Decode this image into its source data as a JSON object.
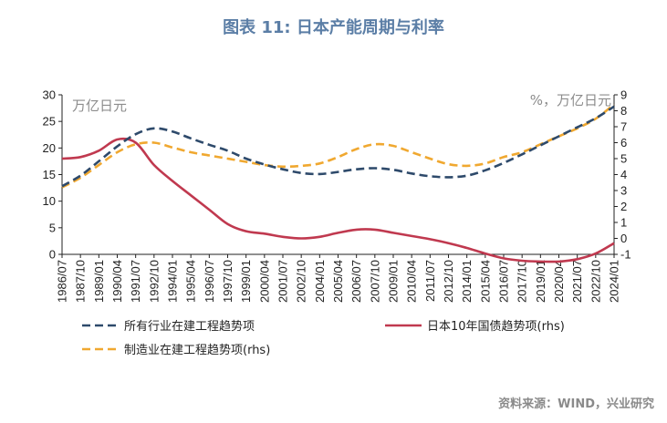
{
  "title": "图表 11: 日本产能周期与利率",
  "source": "资料来源：WIND，兴业研究",
  "chart_data": {
    "type": "line",
    "left_unit": "万亿日元",
    "right_unit": "%，万亿日元",
    "ylim_left": [
      0,
      30
    ],
    "yticks_left": [
      0,
      5,
      10,
      15,
      20,
      25,
      30
    ],
    "ylim_right": [
      -1,
      9
    ],
    "yticks_right": [
      -1,
      0,
      1,
      2,
      3,
      4,
      5,
      6,
      7,
      8,
      9
    ],
    "grid": false,
    "legend_position": "bottom",
    "x_range": [
      "1986/07",
      "2024/01"
    ],
    "x_tick_labels": [
      "1986/07",
      "1987/10",
      "1989/01",
      "1990/04",
      "1991/07",
      "1992/10",
      "1994/01",
      "1995/04",
      "1996/07",
      "1997/10",
      "1999/01",
      "2000/04",
      "2001/07",
      "2002/10",
      "2004/01",
      "2005/04",
      "2006/07",
      "2007/10",
      "2009/01",
      "2010/04",
      "2011/07",
      "2012/10",
      "2014/01",
      "2015/04",
      "2016/07",
      "2017/10",
      "2019/01",
      "2020/04",
      "2021/07",
      "2022/10",
      "2024/01"
    ],
    "series": [
      {
        "name": "所有行业在建工程趋势项",
        "axis": "left",
        "color": "#2e4a6b",
        "dash": "dash",
        "x": [
          "1986/07",
          "1987/10",
          "1989/01",
          "1990/04",
          "1991/07",
          "1992/10",
          "1994/01",
          "1995/04",
          "1996/07",
          "1997/10",
          "1999/01",
          "2000/04",
          "2001/07",
          "2002/10",
          "2004/01",
          "2005/04",
          "2006/07",
          "2007/10",
          "2009/01",
          "2010/04",
          "2011/07",
          "2012/10",
          "2014/01",
          "2015/04",
          "2016/07",
          "2017/10",
          "2019/01",
          "2020/04",
          "2021/07",
          "2022/10",
          "2024/01"
        ],
        "values": [
          12.8,
          14.8,
          17.5,
          20.3,
          22.6,
          23.7,
          23.1,
          21.8,
          20.6,
          19.5,
          18.0,
          16.9,
          16.0,
          15.3,
          15.1,
          15.5,
          16.0,
          16.2,
          15.9,
          15.2,
          14.7,
          14.5,
          14.8,
          15.8,
          17.2,
          18.8,
          20.5,
          22.2,
          23.9,
          25.6,
          27.8
        ]
      },
      {
        "name": "日本10年国债趋势项(rhs)",
        "axis": "right",
        "color": "#c0394f",
        "dash": "solid",
        "x": [
          "1986/07",
          "1987/10",
          "1989/01",
          "1990/04",
          "1991/07",
          "1992/10",
          "1994/01",
          "1995/04",
          "1996/07",
          "1997/10",
          "1999/01",
          "2000/04",
          "2001/07",
          "2002/10",
          "2004/01",
          "2005/04",
          "2006/07",
          "2007/10",
          "2009/01",
          "2010/04",
          "2011/07",
          "2012/10",
          "2014/01",
          "2015/04",
          "2016/07",
          "2017/10",
          "2019/01",
          "2020/04",
          "2021/07",
          "2022/10",
          "2024/01"
        ],
        "values": [
          5.0,
          5.1,
          5.5,
          6.2,
          6.0,
          4.6,
          3.6,
          2.7,
          1.8,
          0.9,
          0.45,
          0.3,
          0.1,
          0.0,
          0.1,
          0.35,
          0.55,
          0.55,
          0.35,
          0.15,
          -0.05,
          -0.3,
          -0.6,
          -0.95,
          -1.25,
          -1.4,
          -1.45,
          -1.45,
          -1.3,
          -0.95,
          -0.3
        ]
      },
      {
        "name": "制造业在建工程趋势项(rhs)",
        "axis": "right",
        "color": "#f0a830",
        "dash": "dash",
        "x": [
          "1986/07",
          "1987/10",
          "1989/01",
          "1990/04",
          "1991/07",
          "1992/10",
          "1994/01",
          "1995/04",
          "1996/07",
          "1997/10",
          "1999/01",
          "2000/04",
          "2001/07",
          "2002/10",
          "2004/01",
          "2005/04",
          "2006/07",
          "2007/10",
          "2009/01",
          "2010/04",
          "2011/07",
          "2012/10",
          "2014/01",
          "2015/04",
          "2016/07",
          "2017/10",
          "2019/01",
          "2020/04",
          "2021/07",
          "2022/10",
          "2024/01"
        ],
        "values": [
          3.2,
          3.8,
          4.6,
          5.4,
          5.9,
          6.0,
          5.7,
          5.4,
          5.2,
          5.0,
          4.8,
          4.6,
          4.5,
          4.55,
          4.7,
          5.1,
          5.6,
          5.9,
          5.8,
          5.4,
          5.0,
          4.65,
          4.55,
          4.7,
          5.1,
          5.4,
          5.9,
          6.4,
          6.9,
          7.5,
          8.4
        ]
      }
    ],
    "legend": [
      {
        "label": "所有行业在建工程趋势项",
        "series": 0
      },
      {
        "label": "日本10年国债趋势项(rhs)",
        "series": 1
      },
      {
        "label": "制造业在建工程趋势项(rhs)",
        "series": 2
      }
    ]
  }
}
